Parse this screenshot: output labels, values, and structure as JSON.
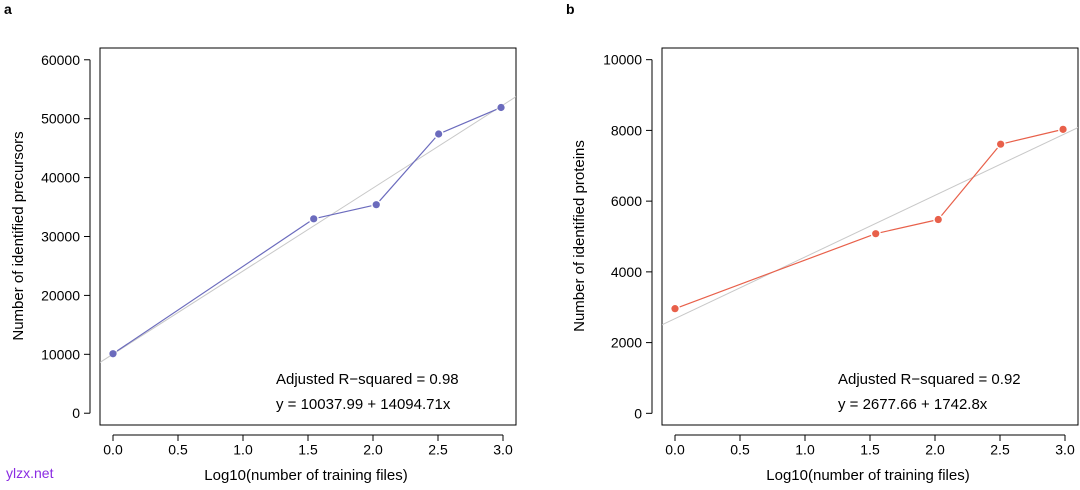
{
  "watermark": "ylzx.net",
  "chart_data": [
    {
      "panel": "a",
      "type": "line",
      "xlabel": "Log10(number of training files)",
      "ylabel": "Number of identified precursors",
      "xlim": [
        -0.1,
        3.1
      ],
      "ylim": [
        -2000,
        62000
      ],
      "xticks": [
        0.0,
        0.5,
        1.0,
        1.5,
        2.0,
        2.5,
        3.0
      ],
      "xtick_labels": [
        "0.0",
        "0.5",
        "1.0",
        "1.5",
        "2.0",
        "2.5",
        "3.0"
      ],
      "yticks": [
        0,
        10000,
        20000,
        30000,
        40000,
        50000,
        60000
      ],
      "ytick_labels": [
        "0",
        "10000",
        "20000",
        "30000",
        "40000",
        "50000",
        "60000"
      ],
      "x": [
        0.0,
        1.544,
        2.025,
        2.505,
        2.985
      ],
      "values": [
        10100,
        33000,
        35400,
        47400,
        51900
      ],
      "series_color": "#6b6bbd",
      "fit": {
        "intercept": 10037.99,
        "slope": 14094.71,
        "color": "#c8c8c8"
      },
      "annotations": [
        "Adjusted R−squared = 0.98",
        "y = 10037.99 + 14094.71x"
      ]
    },
    {
      "panel": "b",
      "type": "line",
      "xlabel": "Log10(number of training files)",
      "ylabel": "Number of identified proteins",
      "xlim": [
        -0.1,
        3.1
      ],
      "ylim": [
        -330,
        10330
      ],
      "xticks": [
        0.0,
        0.5,
        1.0,
        1.5,
        2.0,
        2.5,
        3.0
      ],
      "xtick_labels": [
        "0.0",
        "0.5",
        "1.0",
        "1.5",
        "2.0",
        "2.5",
        "3.0"
      ],
      "yticks": [
        0,
        2000,
        4000,
        6000,
        8000,
        10000
      ],
      "ytick_labels": [
        "0",
        "2000",
        "4000",
        "6000",
        "8000",
        "10000"
      ],
      "x": [
        0.0,
        1.544,
        2.025,
        2.505,
        2.985
      ],
      "values": [
        2960,
        5080,
        5480,
        7610,
        8030
      ],
      "series_color": "#e8604a",
      "fit": {
        "intercept": 2677.66,
        "slope": 1742.8,
        "color": "#c8c8c8"
      },
      "annotations": [
        "Adjusted R−squared = 0.92",
        "y = 2677.66 + 1742.8x"
      ]
    }
  ]
}
